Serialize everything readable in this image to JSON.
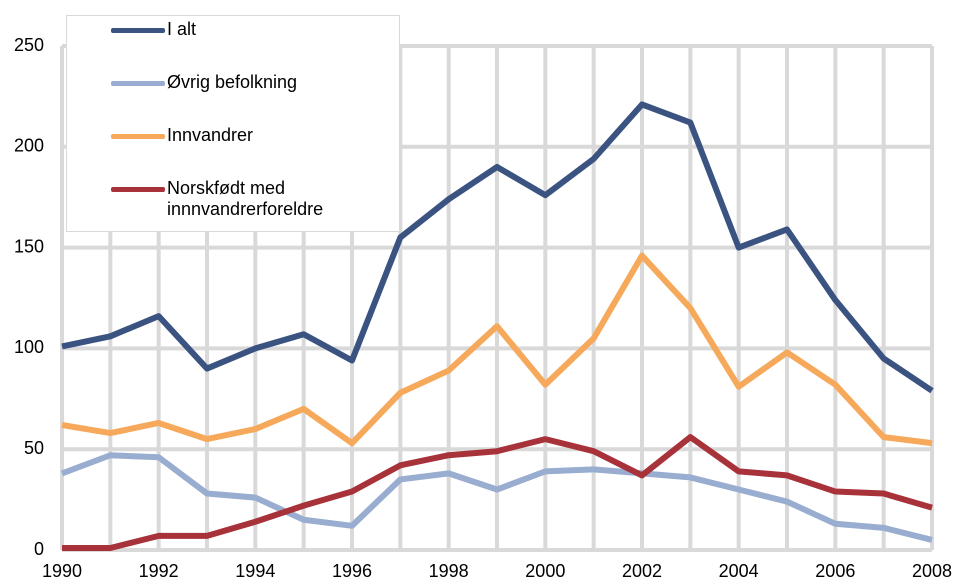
{
  "chart_data": {
    "type": "line",
    "categories": [
      "1990",
      null,
      "1992",
      null,
      "1994",
      null,
      "1996",
      null,
      "1998",
      null,
      "2000",
      null,
      "2002",
      null,
      "2004",
      null,
      "2006",
      null,
      "2008"
    ],
    "series": [
      {
        "name": "I alt",
        "color": "#3b5380",
        "values": [
          101,
          106,
          116,
          90,
          100,
          107,
          94,
          155,
          174,
          190,
          176,
          194,
          221,
          212,
          150,
          159,
          124,
          95,
          79
        ]
      },
      {
        "name": "Øvrig befolkning",
        "color": "#98add0",
        "values": [
          38,
          47,
          46,
          28,
          26,
          15,
          12,
          35,
          38,
          30,
          39,
          40,
          38,
          36,
          30,
          24,
          13,
          11,
          5
        ]
      },
      {
        "name": "Innvandrer",
        "color": "#f6a95a",
        "values": [
          62,
          58,
          63,
          55,
          60,
          70,
          53,
          78,
          89,
          111,
          82,
          105,
          146,
          120,
          81,
          98,
          82,
          56,
          53
        ]
      },
      {
        "name": "Norskfødt med innnvandrerforeldre",
        "color": "#a8323a",
        "values": [
          1,
          1,
          7,
          7,
          14,
          22,
          29,
          42,
          47,
          49,
          55,
          49,
          37,
          56,
          39,
          37,
          29,
          28,
          21
        ]
      }
    ],
    "ylim": [
      0,
      250
    ],
    "yticks": [
      0,
      50,
      100,
      150,
      200,
      250
    ],
    "grid": true,
    "legend": "top-left"
  }
}
